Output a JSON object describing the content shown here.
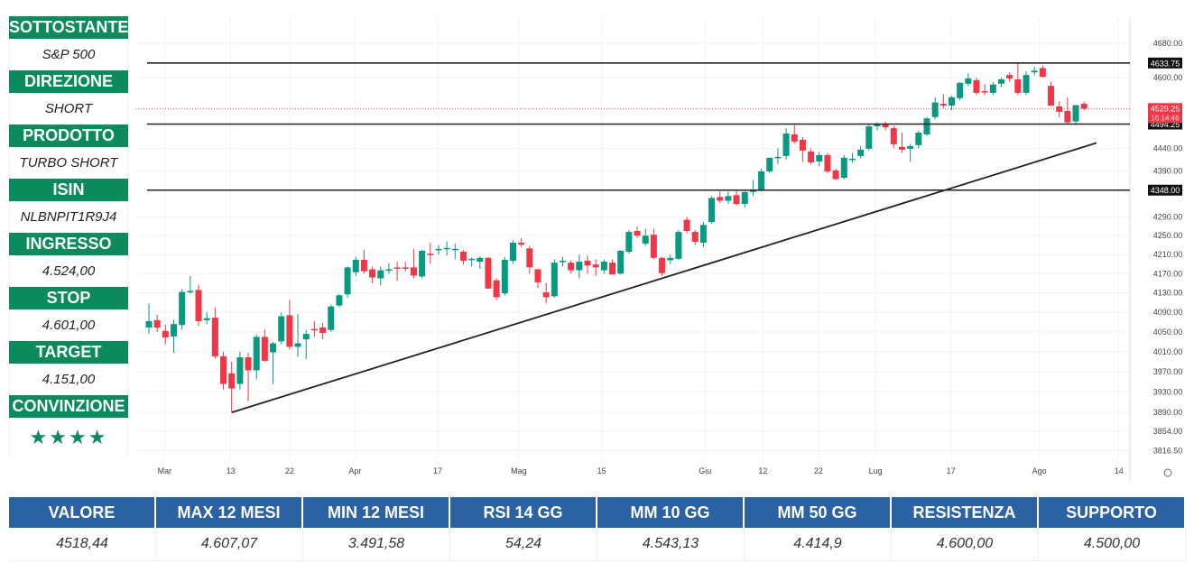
{
  "panel": [
    {
      "label": "SOTTOSTANTE",
      "value": "S&P 500"
    },
    {
      "label": "DIREZIONE",
      "value": "SHORT"
    },
    {
      "label": "PRODOTTO",
      "value": "TURBO SHORT"
    },
    {
      "label": "ISIN",
      "value": "NLBNPIT1R9J4"
    },
    {
      "label": "INGRESSO",
      "value": "4.524,00"
    },
    {
      "label": "STOP",
      "value": "4.601,00"
    },
    {
      "label": "TARGET",
      "value": "4.151,00"
    },
    {
      "label": "CONVINZIONE",
      "value": "★★★★"
    }
  ],
  "stats": {
    "headers": [
      "VALORE",
      "MAX 12 MESI",
      "MIN 12 MESI",
      "RSI 14 GG",
      "MM 10 GG",
      "MM 50 GG",
      "RESISTENZA",
      "SUPPORTO"
    ],
    "values": [
      "4518,44",
      "4.607,07",
      "3.491,58",
      "54,24",
      "4.543,13",
      "4.414,9",
      "4.600,00",
      "4.500,00"
    ]
  },
  "colors": {
    "up": "#089981",
    "down": "#f23645",
    "panel": "#0b8a5c",
    "table": "#2a62a3"
  },
  "chart_data": {
    "type": "candlestick",
    "scale": "log",
    "ylim": [
      3800,
      4740
    ],
    "y_ticks": [
      "4680.00",
      "4600.00",
      "4440.00",
      "4390.00",
      "4290.00",
      "4250.00",
      "4210.00",
      "4170.00",
      "4130.00",
      "4090.00",
      "4050.00",
      "4010.00",
      "3970.00",
      "3930.00",
      "3890.00",
      "3854.00",
      "3816.50"
    ],
    "x_ticks": [
      {
        "label": "Mar",
        "index": 1.9
      },
      {
        "label": "13",
        "index": 9.9
      },
      {
        "label": "22",
        "index": 17
      },
      {
        "label": "Apr",
        "index": 24.9
      },
      {
        "label": "17",
        "index": 34.9
      },
      {
        "label": "Mag",
        "index": 44.7
      },
      {
        "label": "15",
        "index": 54.7
      },
      {
        "label": "Giu",
        "index": 67.2
      },
      {
        "label": "12",
        "index": 74.2
      },
      {
        "label": "22",
        "index": 80.9
      },
      {
        "label": "Lug",
        "index": 87.8
      },
      {
        "label": "17",
        "index": 96.9
      },
      {
        "label": "Ago",
        "index": 107.6
      },
      {
        "label": "14",
        "index": 117.2
      }
    ],
    "levels": [
      {
        "price": 4633.75,
        "label": "4633.75"
      },
      {
        "price": 4494.25,
        "label": "4494.25"
      },
      {
        "price": 4348.0,
        "label": "4348.00"
      }
    ],
    "last_price": {
      "price": 4529.25,
      "label": "4529.25",
      "time": "16:14:46"
    },
    "trendline": {
      "from": {
        "index": 10,
        "price": 3890
      },
      "to": {
        "index": 114.5,
        "price": 4452
      }
    },
    "candles_ohlc": [
      [
        4059,
        4108,
        4046,
        4072
      ],
      [
        4074,
        4085,
        4050,
        4059
      ],
      [
        4052,
        4065,
        4025,
        4039
      ],
      [
        4041,
        4075,
        4008,
        4066
      ],
      [
        4064,
        4138,
        4055,
        4132
      ],
      [
        4132,
        4165,
        4128,
        4134
      ],
      [
        4136,
        4147,
        4062,
        4072
      ],
      [
        4074,
        4090,
        4066,
        4078
      ],
      [
        4079,
        4100,
        3996,
        4001
      ],
      [
        4001,
        4010,
        3935,
        3946
      ],
      [
        3967,
        3990,
        3890,
        3937
      ],
      [
        3946,
        4010,
        3935,
        3999
      ],
      [
        3999,
        4008,
        3912,
        3973
      ],
      [
        3973,
        4045,
        3955,
        4040
      ],
      [
        4040,
        4055,
        3990,
        3992
      ],
      [
        4009,
        4030,
        3946,
        4027
      ],
      [
        4031,
        4090,
        4025,
        4082
      ],
      [
        4084,
        4115,
        4015,
        4020
      ],
      [
        4020,
        4086,
        4000,
        4027
      ],
      [
        4035,
        4054,
        3995,
        4046
      ],
      [
        4056,
        4072,
        4040,
        4054
      ],
      [
        4059,
        4068,
        4035,
        4048
      ],
      [
        4054,
        4106,
        4050,
        4102
      ],
      [
        4104,
        4128,
        4100,
        4125
      ],
      [
        4127,
        4185,
        4120,
        4183
      ],
      [
        4173,
        4205,
        4165,
        4199
      ],
      [
        4199,
        4220,
        4170,
        4175
      ],
      [
        4179,
        4185,
        4150,
        4162
      ],
      [
        4160,
        4185,
        4145,
        4177
      ],
      [
        4176,
        4192,
        4170,
        4179
      ],
      [
        4183,
        4195,
        4155,
        4181
      ],
      [
        4183,
        4195,
        4175,
        4181
      ],
      [
        4183,
        4222,
        4160,
        4166
      ],
      [
        4164,
        4220,
        4160,
        4218
      ],
      [
        4212,
        4235,
        4190,
        4210
      ],
      [
        4220,
        4230,
        4210,
        4222
      ],
      [
        4222,
        4238,
        4208,
        4224
      ],
      [
        4220,
        4233,
        4200,
        4222
      ],
      [
        4216,
        4220,
        4190,
        4197
      ],
      [
        4199,
        4204,
        4185,
        4201
      ],
      [
        4195,
        4206,
        4180,
        4203
      ],
      [
        4203,
        4205,
        4138,
        4139
      ],
      [
        4156,
        4160,
        4115,
        4121
      ],
      [
        4129,
        4205,
        4125,
        4199
      ],
      [
        4197,
        4240,
        4190,
        4235
      ],
      [
        4235,
        4245,
        4225,
        4231
      ],
      [
        4223,
        4228,
        4170,
        4183
      ],
      [
        4179,
        4180,
        4140,
        4152
      ],
      [
        4131,
        4150,
        4108,
        4121
      ],
      [
        4123,
        4200,
        4120,
        4193
      ],
      [
        4195,
        4205,
        4185,
        4197
      ],
      [
        4193,
        4198,
        4170,
        4177
      ],
      [
        4177,
        4210,
        4160,
        4195
      ],
      [
        4197,
        4208,
        4170,
        4187
      ],
      [
        4189,
        4200,
        4165,
        4183
      ],
      [
        4177,
        4200,
        4170,
        4195
      ],
      [
        4193,
        4200,
        4168,
        4168
      ],
      [
        4170,
        4220,
        4168,
        4218
      ],
      [
        4216,
        4262,
        4212,
        4258
      ],
      [
        4260,
        4270,
        4245,
        4250
      ],
      [
        4233,
        4265,
        4228,
        4250
      ],
      [
        4252,
        4265,
        4200,
        4203
      ],
      [
        4203,
        4205,
        4165,
        4171
      ],
      [
        4198,
        4210,
        4190,
        4203
      ],
      [
        4201,
        4262,
        4198,
        4258
      ],
      [
        4284,
        4290,
        4255,
        4260
      ],
      [
        4258,
        4262,
        4230,
        4237
      ],
      [
        4235,
        4280,
        4225,
        4273
      ],
      [
        4279,
        4335,
        4275,
        4331
      ],
      [
        4333,
        4345,
        4320,
        4325
      ],
      [
        4325,
        4345,
        4318,
        4335
      ],
      [
        4337,
        4348,
        4315,
        4318
      ],
      [
        4318,
        4345,
        4310,
        4344
      ],
      [
        4344,
        4370,
        4335,
        4348
      ],
      [
        4348,
        4395,
        4345,
        4389
      ],
      [
        4389,
        4420,
        4385,
        4419
      ],
      [
        4419,
        4440,
        4405,
        4421
      ],
      [
        4423,
        4485,
        4415,
        4473
      ],
      [
        4471,
        4495,
        4450,
        4455
      ],
      [
        4459,
        4465,
        4410,
        4435
      ],
      [
        4433,
        4440,
        4405,
        4409
      ],
      [
        4411,
        4432,
        4400,
        4425
      ],
      [
        4425,
        4430,
        4385,
        4389
      ],
      [
        4391,
        4395,
        4370,
        4372
      ],
      [
        4375,
        4425,
        4372,
        4419
      ],
      [
        4415,
        4430,
        4408,
        4417
      ],
      [
        4423,
        4445,
        4418,
        4437
      ],
      [
        4439,
        4495,
        4435,
        4489
      ],
      [
        4489,
        4498,
        4480,
        4495
      ],
      [
        4495,
        4500,
        4480,
        4487
      ],
      [
        4485,
        4490,
        4440,
        4449
      ],
      [
        4443,
        4475,
        4430,
        4437
      ],
      [
        4439,
        4450,
        4410,
        4445
      ],
      [
        4447,
        4480,
        4440,
        4475
      ],
      [
        4471,
        4510,
        4468,
        4507
      ],
      [
        4510,
        4555,
        4505,
        4543
      ],
      [
        4540,
        4562,
        4530,
        4536
      ],
      [
        4536,
        4558,
        4525,
        4555
      ],
      [
        4553,
        4590,
        4548,
        4588
      ],
      [
        4586,
        4610,
        4580,
        4598
      ],
      [
        4594,
        4600,
        4560,
        4565
      ],
      [
        4569,
        4585,
        4560,
        4567
      ],
      [
        4565,
        4590,
        4560,
        4584
      ],
      [
        4586,
        4600,
        4578,
        4596
      ],
      [
        4606,
        4612,
        4590,
        4598
      ],
      [
        4596,
        4634,
        4560,
        4565
      ],
      [
        4565,
        4615,
        4560,
        4606
      ],
      [
        4612,
        4625,
        4605,
        4616
      ],
      [
        4622,
        4628,
        4600,
        4602
      ],
      [
        4581,
        4590,
        4535,
        4536
      ],
      [
        4534,
        4545,
        4510,
        4522
      ],
      [
        4524,
        4555,
        4494,
        4498
      ],
      [
        4500,
        4535,
        4495,
        4537
      ],
      [
        4540,
        4545,
        4525,
        4529
      ]
    ]
  }
}
